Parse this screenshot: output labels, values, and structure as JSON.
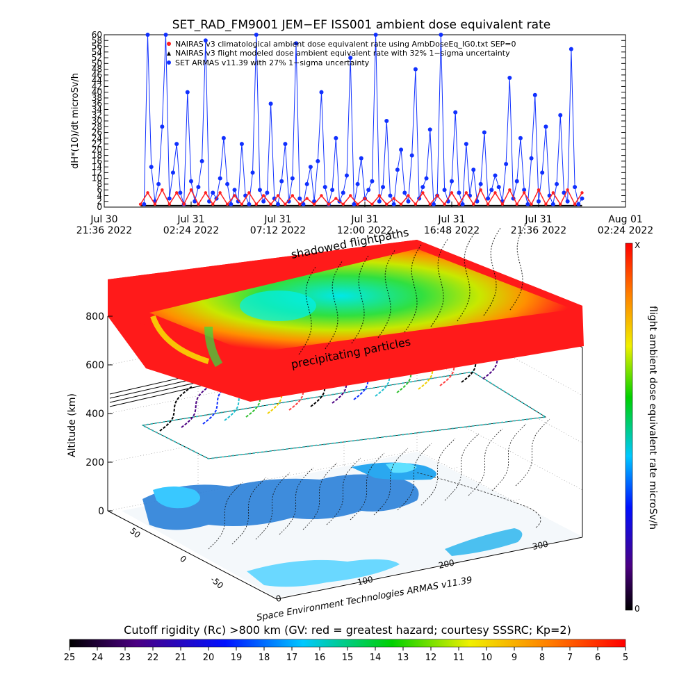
{
  "top_chart": {
    "title": "SET_RAD_FM9001  JEM−EF ISS001 ambient dose equivalent rate",
    "ylabel": "dH*(10)/dt microSv/h",
    "yticks": [
      "0",
      "2",
      "4",
      "6",
      "8",
      "10",
      "12",
      "14",
      "16",
      "18",
      "20",
      "22",
      "24",
      "26",
      "28",
      "30",
      "32",
      "34",
      "36",
      "38",
      "40",
      "42",
      "44",
      "46",
      "48",
      "50",
      "52",
      "54",
      "56",
      "58",
      "60"
    ],
    "xticks": [
      {
        "line1": "Jul 30",
        "line2": "21:36 2022"
      },
      {
        "line1": "Jul 31",
        "line2": "02:24 2022"
      },
      {
        "line1": "Jul 31",
        "line2": "07:12 2022"
      },
      {
        "line1": "Jul 31",
        "line2": "12:00 2022"
      },
      {
        "line1": "Jul 31",
        "line2": "16:48 2022"
      },
      {
        "line1": "Jul 31",
        "line2": "21:36 2022"
      },
      {
        "line1": "Aug 01",
        "line2": "02:24 2022"
      }
    ],
    "legend": [
      "NAIRAS v3 climatological ambient dose equivalent rate using AmbDoseEq_IG0.txt SEP=0",
      "NAIRAS v3 flight modeled dose ambient equivalent rate with 32% 1−sigma uncertainty",
      "SET ARMAS v11.39 with 27% 1−sigma uncertainty"
    ],
    "colors": {
      "armas": "#1030ff",
      "nairas": "#ff2020",
      "climatology": "#000000"
    }
  },
  "chart_data": [
    {
      "type": "line",
      "title": "SET_RAD_FM9001  JEM−EF ISS001 ambient dose equivalent rate",
      "ylabel": "dH*(10)/dt microSv/h",
      "ylim": [
        0,
        60
      ],
      "x_unit": "hours after Jul 30 21:36 2022",
      "xlim": [
        0,
        28.8
      ],
      "series": [
        {
          "name": "SET ARMAS v11.39 with 27% 1−sigma uncertainty",
          "x": [
            2.2,
            2.4,
            2.6,
            2.8,
            3.0,
            3.2,
            3.4,
            3.6,
            3.8,
            4.0,
            4.2,
            4.4,
            4.6,
            4.8,
            5.0,
            5.2,
            5.4,
            5.6,
            5.8,
            6.0,
            6.2,
            6.4,
            6.6,
            6.8,
            7.0,
            7.2,
            7.4,
            7.6,
            7.8,
            8.0,
            8.2,
            8.4,
            8.6,
            8.8,
            9.0,
            9.2,
            9.4,
            9.6,
            9.8,
            10.0,
            10.2,
            10.4,
            10.6,
            10.8,
            11.0,
            11.2,
            11.4,
            11.6,
            11.8,
            12.0,
            12.2,
            12.4,
            12.6,
            12.8,
            13.0,
            13.2,
            13.4,
            13.6,
            13.8,
            14.0,
            14.2,
            14.4,
            14.6,
            14.8,
            15.0,
            15.2,
            15.4,
            15.6,
            15.8,
            16.0,
            16.2,
            16.4,
            16.6,
            16.8,
            17.0,
            17.2,
            17.4,
            17.6,
            17.8,
            18.0,
            18.2,
            18.4,
            18.6,
            18.8,
            19.0,
            19.2,
            19.4,
            19.6,
            19.8,
            20.0,
            20.2,
            20.4,
            20.6,
            20.8,
            21.0,
            21.2,
            21.4,
            21.6,
            21.8,
            22.0,
            22.2,
            22.4,
            22.6,
            22.8,
            23.0,
            23.2,
            23.4,
            23.6,
            23.8,
            24.0,
            24.2,
            24.4,
            24.6,
            24.8,
            25.0,
            25.2,
            25.4,
            25.6,
            25.8,
            26.0,
            26.2,
            26.4
          ],
          "y": [
            1,
            60,
            14,
            2,
            8,
            28,
            60,
            3,
            12,
            22,
            5,
            1,
            40,
            9,
            2,
            7,
            16,
            58,
            2,
            5,
            3,
            10,
            24,
            8,
            1,
            6,
            2,
            22,
            4,
            1,
            12,
            60,
            6,
            2,
            5,
            36,
            3,
            1,
            9,
            22,
            2,
            10,
            57,
            3,
            1,
            8,
            14,
            2,
            16,
            40,
            7,
            1,
            6,
            24,
            2,
            5,
            11,
            52,
            1,
            8,
            17,
            3,
            6,
            9,
            60,
            2,
            7,
            30,
            4,
            1,
            13,
            20,
            5,
            2,
            18,
            48,
            3,
            7,
            10,
            27,
            1,
            4,
            60,
            6,
            2,
            9,
            33,
            5,
            1,
            22,
            4,
            13,
            2,
            8,
            26,
            3,
            6,
            11,
            7,
            2,
            15,
            45,
            3,
            9,
            24,
            6,
            1,
            17,
            39,
            2,
            12,
            28,
            4,
            1,
            8,
            32,
            5,
            2,
            55,
            7,
            1,
            3
          ]
        },
        {
          "name": "NAIRAS v3 flight modeled dose ambient equivalent rate with 32% 1−sigma uncertainty",
          "x": [
            2.0,
            2.4,
            2.8,
            3.2,
            3.6,
            4.0,
            4.4,
            4.8,
            5.2,
            5.6,
            6.0,
            6.4,
            6.8,
            7.2,
            7.6,
            8.0,
            8.4,
            8.8,
            9.2,
            9.6,
            10.0,
            10.4,
            10.8,
            11.2,
            11.6,
            12.0,
            12.4,
            12.8,
            13.2,
            13.6,
            14.0,
            14.4,
            14.8,
            15.2,
            15.6,
            16.0,
            16.4,
            16.8,
            17.2,
            17.6,
            18.0,
            18.4,
            18.8,
            19.2,
            19.6,
            20.0,
            20.4,
            20.8,
            21.2,
            21.6,
            22.0,
            22.4,
            22.8,
            23.2,
            23.6,
            24.0,
            24.4,
            24.8,
            25.2,
            25.6,
            26.0,
            26.4
          ],
          "y": [
            1,
            5,
            1,
            6,
            1,
            5,
            1,
            6,
            1,
            5,
            1,
            5,
            1,
            4,
            1,
            5,
            1,
            4,
            1,
            4,
            1,
            4,
            1,
            3,
            1,
            4,
            1,
            3,
            1,
            4,
            1,
            3,
            1,
            4,
            1,
            3,
            1,
            4,
            1,
            5,
            1,
            4,
            1,
            5,
            1,
            5,
            1,
            6,
            1,
            5,
            1,
            6,
            1,
            5,
            1,
            6,
            1,
            5,
            1,
            6,
            1,
            5
          ]
        },
        {
          "name": "NAIRAS v3 climatological ambient dose equivalent rate using AmbDoseEq_IG0.txt SEP=0",
          "x": [
            2.0,
            26.4
          ],
          "y": [
            0.5,
            0.5
          ]
        }
      ]
    },
    {
      "type": "heatmap",
      "subtype": "3D orbit visualization",
      "zlabel": "Altitude (km)",
      "zticks": [
        "0",
        "200",
        "400",
        "600",
        "800"
      ],
      "xticks": [
        "0",
        "100",
        "200",
        "300"
      ],
      "yticks": [
        "-50",
        "0",
        "50"
      ],
      "annotations": [
        "shadowed flightpaths",
        "precipitating particles"
      ],
      "credit": "Space Environment Technologies ARMAS v11.39",
      "vertical_colorbar": {
        "label": "flight ambient dose equivalent rate microSv/h",
        "top": "X",
        "bottom": "0"
      },
      "horizontal_colorbar": {
        "label": "Cutoff rigidity (Rc) >800 km (GV: red = greatest hazard; courtesy SSSRC; Kp=2)",
        "ticks": [
          "25",
          "24",
          "23",
          "22",
          "21",
          "20",
          "19",
          "18",
          "17",
          "16",
          "15",
          "14",
          "13",
          "12",
          "11",
          "10",
          "9",
          "8",
          "7",
          "6",
          "5"
        ]
      }
    }
  ]
}
